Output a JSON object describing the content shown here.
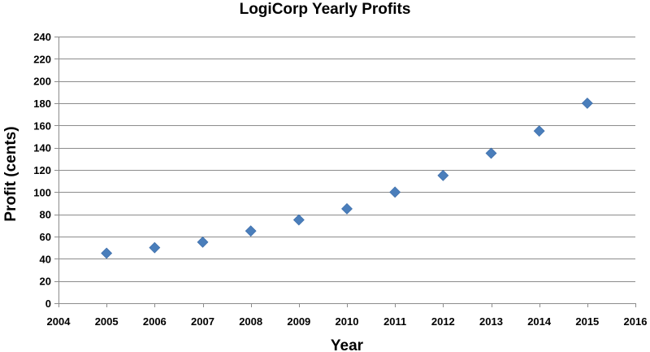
{
  "chart_data": {
    "type": "scatter",
    "title": "LogiCorp Yearly Profits",
    "xlabel": "Year",
    "ylabel": "Profit (cents)",
    "xlim": [
      2004,
      2016
    ],
    "ylim": [
      0,
      240
    ],
    "x_ticks": [
      2004,
      2005,
      2006,
      2007,
      2008,
      2009,
      2010,
      2011,
      2012,
      2013,
      2014,
      2015,
      2016
    ],
    "y_ticks": [
      0,
      20,
      40,
      60,
      80,
      100,
      120,
      140,
      160,
      180,
      200,
      220,
      240
    ],
    "grid": "horizontal",
    "legend": "none",
    "marker": "diamond",
    "series": [
      {
        "color": "#4a7ebb",
        "x": [
          2005,
          2006,
          2007,
          2008,
          2009,
          2010,
          2011,
          2012,
          2013,
          2014,
          2015
        ],
        "y": [
          45,
          50,
          55,
          65,
          75,
          85,
          100,
          115,
          135,
          155,
          180
        ]
      }
    ]
  }
}
